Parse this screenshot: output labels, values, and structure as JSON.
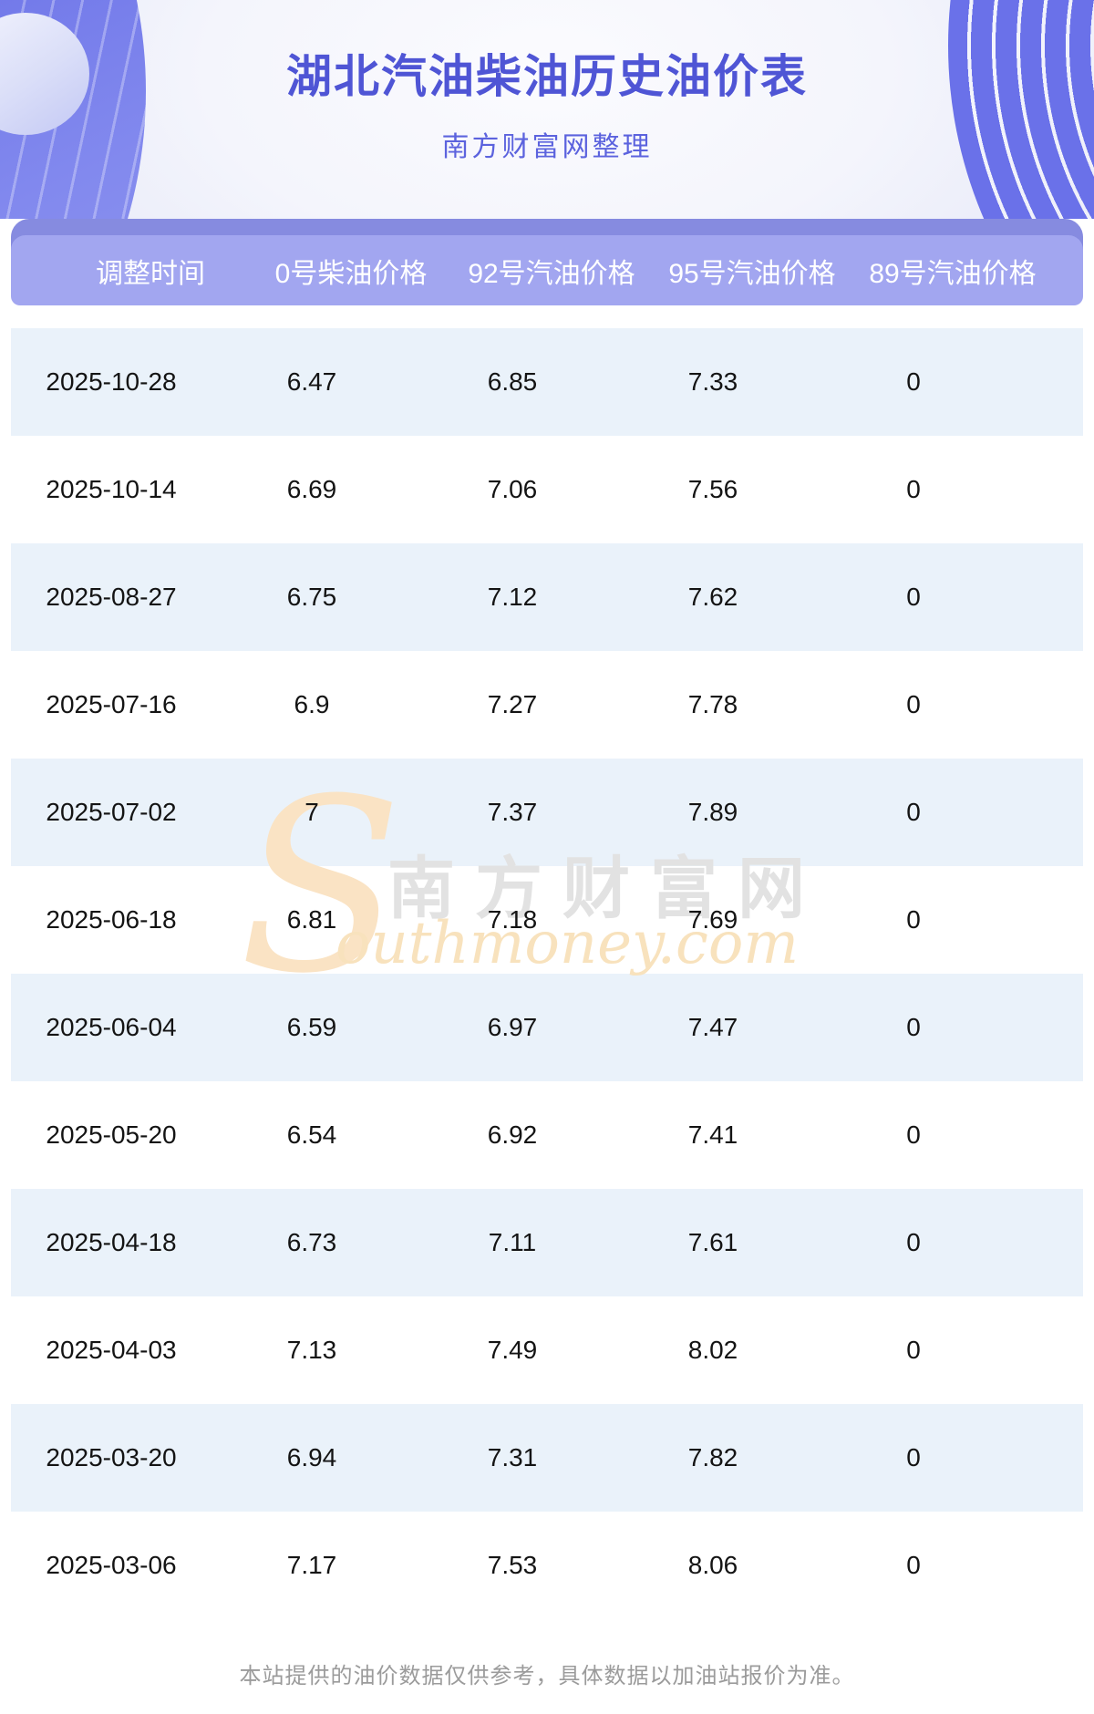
{
  "page": {
    "title": "湖北汽油柴油历史油价表",
    "subtitle": "南方财富网整理",
    "footer_note": "本站提供的油价数据仅供参考，具体数据以加油站报价为准。"
  },
  "watermark": {
    "initial": "S",
    "cn_text": "南方财富网",
    "en_text": "outhmoney.com"
  },
  "colors": {
    "title_text": "#4f55d5",
    "subtitle_text": "#5c63de",
    "header_bar": "#a2a6f0",
    "header_back_bar": "#868be0",
    "header_text": "#ffffff",
    "row_alt_background": "#eaf2fa",
    "row_background": "#ffffff",
    "body_text": "#141414",
    "banner_blue": "#6a71e9",
    "footer_text": "#9b9b9b",
    "watermark_orange": "#fae3c4",
    "watermark_gray": "#e2e2e2"
  },
  "table": {
    "columns": [
      "调整时间",
      "0号柴油价格",
      "92号汽油价格",
      "95号汽油价格",
      "89号汽油价格"
    ],
    "rows": [
      [
        "2025-10-28",
        "6.47",
        "6.85",
        "7.33",
        "0"
      ],
      [
        "2025-10-14",
        "6.69",
        "7.06",
        "7.56",
        "0"
      ],
      [
        "2025-08-27",
        "6.75",
        "7.12",
        "7.62",
        "0"
      ],
      [
        "2025-07-16",
        "6.9",
        "7.27",
        "7.78",
        "0"
      ],
      [
        "2025-07-02",
        "7",
        "7.37",
        "7.89",
        "0"
      ],
      [
        "2025-06-18",
        "6.81",
        "7.18",
        "7.69",
        "0"
      ],
      [
        "2025-06-04",
        "6.59",
        "6.97",
        "7.47",
        "0"
      ],
      [
        "2025-05-20",
        "6.54",
        "6.92",
        "7.41",
        "0"
      ],
      [
        "2025-04-18",
        "6.73",
        "7.11",
        "7.61",
        "0"
      ],
      [
        "2025-04-03",
        "7.13",
        "7.49",
        "8.02",
        "0"
      ],
      [
        "2025-03-20",
        "6.94",
        "7.31",
        "7.82",
        "0"
      ],
      [
        "2025-03-06",
        "7.17",
        "7.53",
        "8.06",
        "0"
      ]
    ]
  }
}
